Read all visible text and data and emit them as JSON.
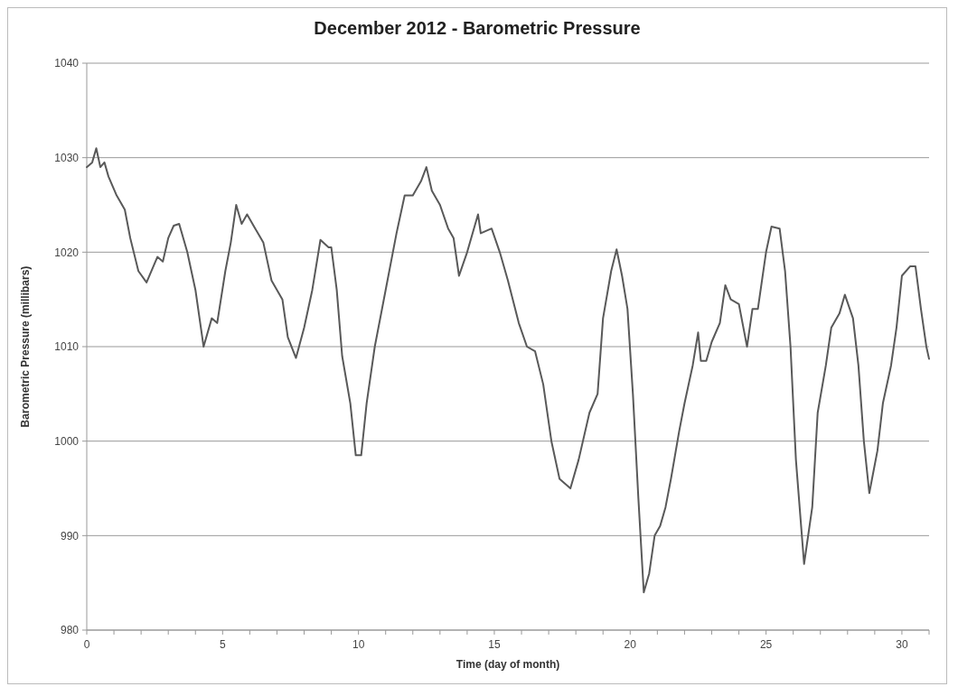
{
  "chart_data": {
    "type": "line",
    "title": "December 2012 - Barometric Pressure",
    "xlabel": "Time (day of month)",
    "ylabel": "Barometric Pressure (millibars)",
    "xlim": [
      0,
      31
    ],
    "ylim": [
      980,
      1040
    ],
    "yticks": [
      980,
      990,
      1000,
      1010,
      1020,
      1030,
      1040
    ],
    "xticks": [
      0,
      {
        "value": 1,
        "label": null
      },
      {
        "value": 2,
        "label": null
      },
      {
        "value": 3,
        "label": null
      },
      {
        "value": 4,
        "label": null
      },
      5,
      {
        "value": 6,
        "label": null
      },
      {
        "value": 7,
        "label": null
      },
      {
        "value": 8,
        "label": null
      },
      {
        "value": 9,
        "label": null
      },
      10,
      {
        "value": 11,
        "label": null
      },
      {
        "value": 12,
        "label": null
      },
      {
        "value": 13,
        "label": null
      },
      {
        "value": 14,
        "label": null
      },
      15,
      {
        "value": 16,
        "label": null
      },
      {
        "value": 17,
        "label": null
      },
      {
        "value": 18,
        "label": null
      },
      {
        "value": 19,
        "label": null
      },
      20,
      {
        "value": 21,
        "label": null
      },
      {
        "value": 22,
        "label": null
      },
      {
        "value": 23,
        "label": null
      },
      {
        "value": 24,
        "label": null
      },
      25,
      {
        "value": 26,
        "label": null
      },
      {
        "value": 27,
        "label": null
      },
      {
        "value": 28,
        "label": null
      },
      {
        "value": 29,
        "label": null
      },
      30,
      {
        "value": 31,
        "label": null
      }
    ],
    "grid": "y",
    "marker": "none",
    "line_style": "solid",
    "series": [
      {
        "color": "#595959",
        "x": [
          0,
          0.2,
          0.35,
          0.5,
          0.65,
          0.8,
          1.1,
          1.4,
          1.6,
          1.9,
          2.2,
          2.6,
          2.8,
          3.0,
          3.2,
          3.4,
          3.7,
          4.0,
          4.3,
          4.6,
          4.8,
          5.1,
          5.3,
          5.5,
          5.7,
          5.9,
          6.2,
          6.5,
          6.8,
          7.2,
          7.4,
          7.7,
          8.0,
          8.3,
          8.6,
          8.9,
          9.0,
          9.2,
          9.4,
          9.7,
          9.9,
          10.1,
          10.3,
          10.6,
          11.0,
          11.4,
          11.7,
          12.0,
          12.3,
          12.5,
          12.7,
          13.0,
          13.3,
          13.5,
          13.7,
          14.0,
          14.4,
          14.5,
          14.9,
          15.2,
          15.5,
          15.9,
          16.2,
          16.5,
          16.8,
          17.1,
          17.4,
          17.8,
          18.1,
          18.5,
          18.8,
          19.0,
          19.3,
          19.5,
          19.7,
          19.9,
          20.1,
          20.3,
          20.5,
          20.7,
          20.9,
          21.1,
          21.3,
          21.5,
          21.8,
          22.0,
          22.3,
          22.5,
          22.6,
          22.8,
          23.0,
          23.3,
          23.5,
          23.7,
          24.0,
          24.3,
          24.5,
          24.7,
          25.0,
          25.2,
          25.5,
          25.7,
          25.9,
          26.1,
          26.4,
          26.7,
          26.9,
          27.2,
          27.4,
          27.7,
          27.9,
          28.2,
          28.4,
          28.6,
          28.8,
          29.1,
          29.3,
          29.6,
          29.8,
          30.0,
          30.3,
          30.5,
          30.7,
          30.9,
          31.0
        ],
        "values": [
          1029,
          1029.5,
          1031,
          1029,
          1029.5,
          1028,
          1026,
          1024.5,
          1021.5,
          1018,
          1016.8,
          1019.5,
          1019,
          1021.5,
          1022.8,
          1023,
          1020,
          1016,
          1010,
          1013,
          1012.5,
          1018,
          1021,
          1025,
          1023,
          1024,
          1022.5,
          1021,
          1017,
          1015,
          1011,
          1008.8,
          1012,
          1016,
          1021.3,
          1020.5,
          1020.5,
          1016,
          1009,
          1004,
          998.5,
          998.5,
          1004,
          1010,
          1016,
          1022,
          1026,
          1026,
          1027.5,
          1029,
          1026.5,
          1025,
          1022.5,
          1021.5,
          1017.5,
          1020,
          1024,
          1022,
          1022.5,
          1020,
          1017,
          1012.5,
          1010,
          1009.5,
          1006,
          1000,
          996,
          995,
          998,
          1003,
          1005,
          1013,
          1018,
          1020.3,
          1017.5,
          1014,
          1005,
          994,
          984,
          986,
          990,
          991,
          993,
          996,
          1001,
          1004,
          1008,
          1011.5,
          1008.5,
          1008.5,
          1010.5,
          1012.5,
          1016.5,
          1015,
          1014.5,
          1010,
          1014,
          1014,
          1020,
          1022.7,
          1022.5,
          1018,
          1010,
          998,
          987,
          993,
          1003,
          1008,
          1012,
          1013.5,
          1015.5,
          1013,
          1008,
          1000,
          994.5,
          999,
          1004,
          1008,
          1012,
          1017.5,
          1018.5,
          1018.5,
          1014,
          1010,
          1008.7
        ]
      }
    ]
  }
}
